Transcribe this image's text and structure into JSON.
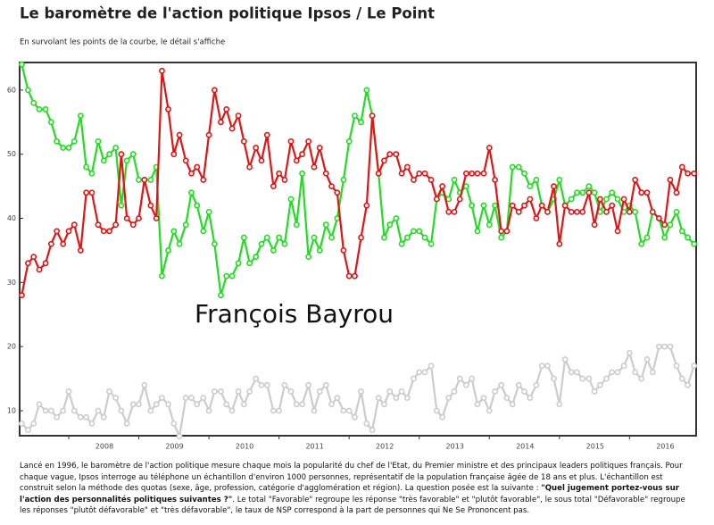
{
  "chart_data": {
    "type": "line",
    "title": "Le baromètre de l'action politique Ipsos / Le Point",
    "subtitle": "En survolant les points de la courbe, le détail s'affiche",
    "annotation": "François Bayrou",
    "xlim": [
      2007.3,
      2016.95
    ],
    "xticks": [
      2008,
      2009,
      2010,
      2011,
      2012,
      2013,
      2014,
      2015,
      2016
    ],
    "ylim": [
      6.1,
      64.3
    ],
    "yticks": [
      10,
      20,
      30,
      40,
      50,
      60
    ],
    "grid": false,
    "x": [
      2007.33,
      2007.42,
      2007.5,
      2007.58,
      2007.67,
      2007.75,
      2007.83,
      2007.92,
      2008,
      2008.08,
      2008.17,
      2008.25,
      2008.33,
      2008.42,
      2008.5,
      2008.58,
      2008.67,
      2008.75,
      2008.83,
      2008.92,
      2009,
      2009.08,
      2009.17,
      2009.25,
      2009.33,
      2009.42,
      2009.5,
      2009.58,
      2009.67,
      2009.75,
      2009.83,
      2009.92,
      2010,
      2010.08,
      2010.17,
      2010.25,
      2010.33,
      2010.42,
      2010.5,
      2010.58,
      2010.67,
      2010.75,
      2010.83,
      2010.92,
      2011,
      2011.08,
      2011.17,
      2011.25,
      2011.33,
      2011.42,
      2011.5,
      2011.58,
      2011.67,
      2011.75,
      2011.83,
      2011.92,
      2012,
      2012.08,
      2012.17,
      2012.25,
      2012.33,
      2012.42,
      2012.5,
      2012.58,
      2012.67,
      2012.75,
      2012.83,
      2012.92,
      2013,
      2013.08,
      2013.17,
      2013.25,
      2013.33,
      2013.42,
      2013.5,
      2013.58,
      2013.67,
      2013.75,
      2013.83,
      2013.92,
      2014,
      2014.08,
      2014.17,
      2014.25,
      2014.33,
      2014.42,
      2014.5,
      2014.58,
      2014.67,
      2014.75,
      2014.83,
      2014.92,
      2015,
      2015.08,
      2015.17,
      2015.25,
      2015.33,
      2015.42,
      2015.5,
      2015.58,
      2015.67,
      2015.75,
      2015.83,
      2015.92,
      2016,
      2016.08,
      2016.17,
      2016.25,
      2016.33,
      2016.42,
      2016.5,
      2016.58,
      2016.67,
      2016.75,
      2016.83,
      2016.92
    ],
    "series": [
      {
        "color": "#22dd22",
        "values": [
          64,
          60,
          58,
          57,
          57,
          55,
          52,
          51,
          51,
          52,
          56,
          48,
          47,
          52,
          49,
          50,
          51,
          42,
          49,
          50,
          46,
          46,
          46,
          48,
          31,
          35,
          38,
          36,
          39,
          44,
          42,
          38,
          41,
          36,
          28,
          31,
          31,
          33,
          37,
          33,
          34,
          36,
          37,
          35,
          37,
          36,
          43,
          39,
          47,
          34,
          37,
          35,
          39,
          37,
          40,
          46,
          52,
          56,
          55,
          60,
          56,
          47,
          37,
          39,
          40,
          36,
          37,
          38,
          38,
          37,
          36,
          43,
          44,
          43,
          46,
          44,
          45,
          42,
          38,
          42,
          39,
          42,
          37,
          38,
          48,
          48,
          47,
          45,
          46,
          42,
          41,
          43,
          46,
          42,
          43,
          44,
          44,
          45,
          44,
          41,
          43,
          44,
          43,
          41,
          42,
          41,
          36,
          37,
          41,
          40,
          37,
          39,
          41,
          38,
          37,
          36
        ]
      },
      {
        "color": "#e01515",
        "values": [
          28,
          33,
          34,
          32,
          33,
          36,
          38,
          36,
          38,
          39,
          35,
          44,
          44,
          39,
          38,
          38,
          39,
          50,
          40,
          39,
          40,
          46,
          42,
          40,
          63,
          57,
          50,
          53,
          49,
          47,
          48,
          46,
          53,
          60,
          55,
          57,
          54,
          56,
          52,
          48,
          51,
          49,
          53,
          45,
          47,
          46,
          52,
          49,
          50,
          52,
          48,
          51,
          47,
          45,
          44,
          35,
          31,
          31,
          37,
          42,
          56,
          47,
          49,
          50,
          50,
          47,
          48,
          46,
          47,
          47,
          46,
          43,
          45,
          41,
          41,
          43,
          47,
          47,
          47,
          47,
          51,
          46,
          38,
          38,
          42,
          41,
          42,
          43,
          40,
          42,
          41,
          45,
          36,
          42,
          41,
          41,
          41,
          44,
          39,
          43,
          41,
          42,
          38,
          43,
          41,
          46,
          44,
          44,
          41,
          40,
          39,
          46,
          44,
          48,
          47,
          47
        ]
      },
      {
        "color": "#cccccc",
        "values": [
          8,
          7,
          8,
          11,
          10,
          10,
          9,
          10,
          13,
          10,
          9,
          9,
          8,
          10,
          9,
          13,
          12,
          10,
          8,
          11,
          11,
          14,
          10,
          11,
          12,
          11,
          8,
          6,
          12,
          12,
          11,
          12,
          10,
          13,
          13,
          11,
          10,
          13,
          11,
          13,
          15,
          14,
          14,
          10,
          10,
          14,
          13,
          11,
          11,
          14,
          10,
          13,
          14,
          11,
          12,
          10,
          10,
          9,
          13,
          8,
          7,
          12,
          11,
          13,
          12,
          13,
          12,
          15,
          16,
          16,
          17,
          10,
          9,
          12,
          13,
          15,
          14,
          15,
          11,
          12,
          10,
          13,
          14,
          12,
          11,
          14,
          13,
          12,
          14,
          17,
          17,
          15,
          11,
          18,
          16,
          16,
          15,
          15,
          13,
          14,
          15,
          16,
          16,
          17,
          19,
          16,
          15,
          18,
          16,
          20,
          20,
          20,
          17,
          15,
          14,
          17
        ]
      }
    ],
    "note": [
      "Lancé en 1996, le baromètre de l'action politique mesure chaque mois la popularité du chef de l'Etat, du Premier ministre et des principaux leaders politiques français. Pour chaque vague, Ipsos interroge au téléphone un échantillon d'environ 1000 personnes, représentatif de la population française âgée de 18 ans et plus. L'échantillon est construit selon la méthode des quotas (sexe, âge, profession, catégorie d'agglomération et région). La question posée est la suivante : ",
      "\"Quel jugement portez-vous sur l'action des personnalités politiques suivantes ?\"",
      ". Le total \"Favorable\" regroupe les réponse \"très favorable\" et \"plutôt favorable\", le sous total \"Défavorable\" regroupe les réponses \"plutôt défavorable\" et \"très défavorable\", le taux de NSP correspond à la part de personnes qui Ne Se Prononcent pas."
    ]
  }
}
